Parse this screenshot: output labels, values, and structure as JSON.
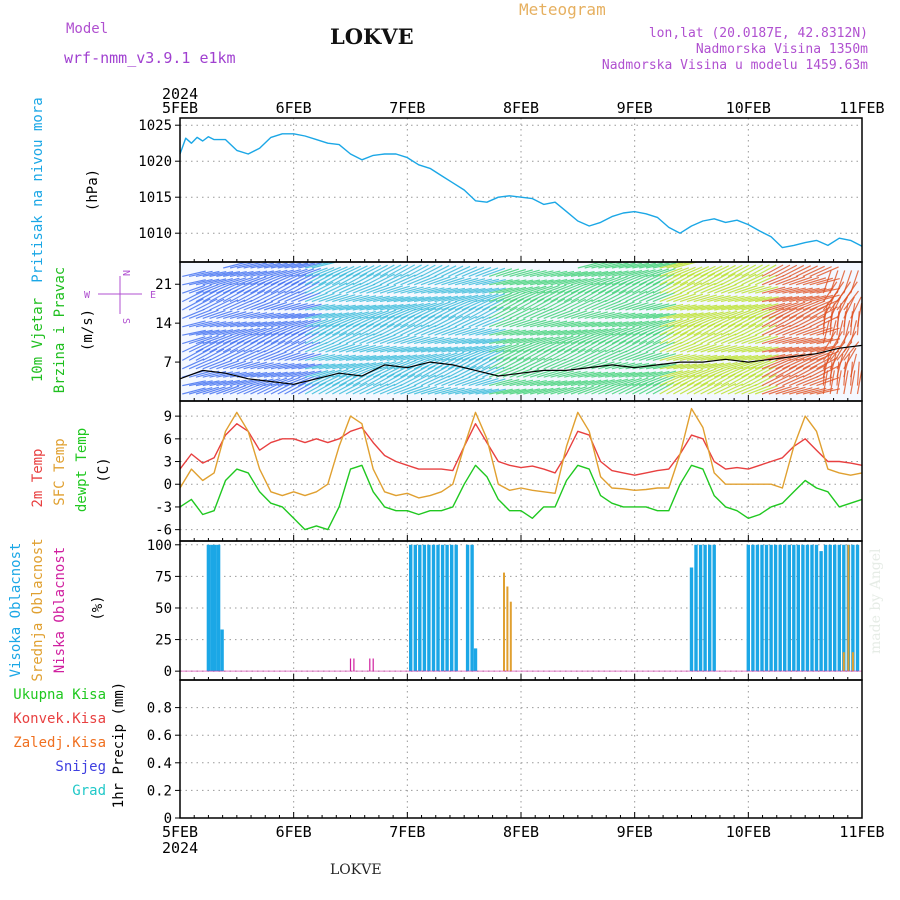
{
  "header": {
    "model_label": "Model",
    "model_value": "wrf-nmm_v3.9.1 e1km",
    "station": "LOKVE",
    "product": "Meteogram",
    "coords": "lon,lat (20.0187E, 42.8312N)",
    "elevation": "Nadmorska Visina 1350m",
    "model_elevation": "Nadmorska Visina u modelu 1459.63m",
    "footer_station": "LOKVE",
    "watermark": "made by Angel"
  },
  "colors": {
    "pressure": "#1ba7e6",
    "wind_label": "#1fbf1f",
    "temp2m": "#e84040",
    "sfc_temp": "#e0a030",
    "dewpt": "#20c820",
    "cloud_high": "#1ba7e6",
    "cloud_mid": "#e0a030",
    "cloud_low": "#d020a0",
    "precip_total": "#20c820",
    "precip_conv": "#e84040",
    "precip_frz": "#f07020",
    "snow": "#4040e0",
    "hail": "#20c8c8"
  },
  "chart_data": {
    "type": "line",
    "time": {
      "year_top": "2024",
      "year_bottom": "2024",
      "tick_labels": [
        "5FEB",
        "6FEB",
        "7FEB",
        "8FEB",
        "9FEB",
        "10FEB",
        "11FEB"
      ],
      "range_days": [
        0,
        6
      ]
    },
    "panels": [
      {
        "id": "pressure",
        "ylabels": [
          "Pritisak na nivou mora",
          "(hPa)"
        ],
        "ylim": [
          1006,
          1026
        ],
        "yticks": [
          1010,
          1015,
          1020,
          1025
        ],
        "series": [
          {
            "t": [
              0.0,
              0.05,
              0.1,
              0.15,
              0.2,
              0.25,
              0.3,
              0.4,
              0.5,
              0.6,
              0.7,
              0.8,
              0.9,
              1.0,
              1.1,
              1.2,
              1.3,
              1.4,
              1.5,
              1.6,
              1.7,
              1.8,
              1.9,
              2.0,
              2.1,
              2.2,
              2.3,
              2.4,
              2.5,
              2.6,
              2.7,
              2.8,
              2.9,
              3.0,
              3.1,
              3.2,
              3.3,
              3.4,
              3.5,
              3.6,
              3.7,
              3.8,
              3.9,
              4.0,
              4.1,
              4.2,
              4.3,
              4.4,
              4.5,
              4.6,
              4.7,
              4.8,
              4.9,
              5.0,
              5.1,
              5.2,
              5.3,
              5.4,
              5.5,
              5.6,
              5.7,
              5.8,
              5.9,
              6.0
            ],
            "values": [
              1021,
              1023.2,
              1022.5,
              1023.3,
              1022.8,
              1023.4,
              1023,
              1023,
              1021.5,
              1021,
              1021.8,
              1023.3,
              1023.8,
              1023.8,
              1023.5,
              1023,
              1022.5,
              1022.3,
              1021,
              1020.2,
              1020.8,
              1021,
              1021,
              1020.5,
              1019.5,
              1019,
              1018,
              1017,
              1016,
              1014.5,
              1014.3,
              1015,
              1015.2,
              1015,
              1014.8,
              1014,
              1014.3,
              1013,
              1011.7,
              1011,
              1011.5,
              1012.3,
              1012.8,
              1013,
              1012.7,
              1012.2,
              1010.8,
              1010,
              1011,
              1011.7,
              1012,
              1011.5,
              1011.8,
              1011.2,
              1010.3,
              1009.5,
              1008,
              1008.3,
              1008.7,
              1009,
              1008.3,
              1009.3,
              1009,
              1008.2
            ]
          }
        ]
      },
      {
        "id": "wind",
        "ylabels": [
          "10m Vjetar",
          "Brzina i Pravac",
          "(m/s)"
        ],
        "direction_legend": [
          "N",
          "S",
          "W",
          "E"
        ],
        "ylim": [
          0,
          25
        ],
        "yticks": [
          7,
          14,
          21
        ],
        "series": [
          {
            "name": "speed",
            "t": [
              0.0,
              0.2,
              0.4,
              0.6,
              0.8,
              1.0,
              1.2,
              1.4,
              1.6,
              1.8,
              2.0,
              2.2,
              2.4,
              2.6,
              2.8,
              3.0,
              3.2,
              3.4,
              3.6,
              3.8,
              4.0,
              4.2,
              4.4,
              4.6,
              4.8,
              5.0,
              5.2,
              5.4,
              5.6,
              5.8,
              6.0
            ],
            "values": [
              4,
              5.5,
              5,
              4,
              3.5,
              3,
              4,
              5,
              4.5,
              6.5,
              6,
              7,
              6.5,
              5.5,
              4.5,
              5,
              5.5,
              5.5,
              6,
              6.5,
              6,
              6.5,
              7,
              7,
              7.5,
              7,
              7.5,
              8,
              8.5,
              9.5,
              10
            ]
          }
        ]
      },
      {
        "id": "temperature",
        "ylabels": [
          "2m Temp",
          "SFC Temp",
          "dewpt Temp",
          "(C)"
        ],
        "ylim": [
          -7.5,
          11
        ],
        "yticks": [
          -6,
          -3,
          0,
          3,
          6,
          9
        ],
        "series": [
          {
            "name": "2m Temp",
            "t": [
              0.0,
              0.1,
              0.2,
              0.3,
              0.4,
              0.5,
              0.6,
              0.7,
              0.8,
              0.9,
              1.0,
              1.1,
              1.2,
              1.3,
              1.4,
              1.5,
              1.6,
              1.7,
              1.8,
              1.9,
              2.0,
              2.1,
              2.2,
              2.3,
              2.4,
              2.5,
              2.6,
              2.7,
              2.8,
              2.9,
              3.0,
              3.1,
              3.2,
              3.3,
              3.4,
              3.5,
              3.6,
              3.7,
              3.8,
              3.9,
              4.0,
              4.1,
              4.2,
              4.3,
              4.4,
              4.5,
              4.6,
              4.7,
              4.8,
              4.9,
              5.0,
              5.1,
              5.2,
              5.3,
              5.4,
              5.5,
              5.6,
              5.7,
              5.8,
              5.9,
              6.0
            ],
            "values": [
              2,
              4,
              2.8,
              3.5,
              6.5,
              8,
              7,
              4.5,
              5.5,
              6,
              6,
              5.5,
              6,
              5.5,
              6,
              7,
              7.5,
              5.5,
              3.8,
              3,
              2.5,
              2,
              2,
              2,
              1.8,
              5,
              8,
              5.5,
              3,
              2.5,
              2.2,
              2.4,
              2,
              1.5,
              4,
              7,
              6.5,
              3,
              1.8,
              1.5,
              1.2,
              1.5,
              1.8,
              2,
              4,
              6.5,
              6,
              3,
              2,
              2.2,
              2,
              2.5,
              3,
              3.5,
              5,
              6,
              4.5,
              3,
              3,
              2.8,
              2.5
            ]
          },
          {
            "name": "SFC Temp",
            "t": [
              0.0,
              0.1,
              0.2,
              0.3,
              0.4,
              0.5,
              0.6,
              0.7,
              0.8,
              0.9,
              1.0,
              1.1,
              1.2,
              1.3,
              1.4,
              1.5,
              1.6,
              1.7,
              1.8,
              1.9,
              2.0,
              2.1,
              2.2,
              2.3,
              2.4,
              2.5,
              2.6,
              2.7,
              2.8,
              2.9,
              3.0,
              3.1,
              3.2,
              3.3,
              3.4,
              3.5,
              3.6,
              3.7,
              3.8,
              3.9,
              4.0,
              4.1,
              4.2,
              4.3,
              4.4,
              4.5,
              4.6,
              4.7,
              4.8,
              4.9,
              5.0,
              5.1,
              5.2,
              5.3,
              5.4,
              5.5,
              5.6,
              5.7,
              5.8,
              5.9,
              6.0
            ],
            "values": [
              -0.5,
              2,
              0.5,
              1.5,
              7,
              9.5,
              7,
              2,
              -1,
              -1.5,
              -1,
              -1.5,
              -1,
              0,
              5,
              9,
              8,
              2,
              -1,
              -1.5,
              -1.2,
              -1.8,
              -1.5,
              -1,
              0,
              5,
              9.5,
              6,
              0,
              -0.8,
              -0.5,
              -0.8,
              -1,
              -1.2,
              5,
              9.5,
              7,
              1,
              -0.5,
              -0.6,
              -0.8,
              -0.7,
              -0.5,
              -0.5,
              4,
              10,
              7.5,
              1.5,
              0,
              0,
              0,
              0,
              0,
              -0.5,
              5,
              9,
              7,
              2,
              1.5,
              1.2,
              1.5
            ]
          },
          {
            "name": "dewpt Temp",
            "t": [
              0.0,
              0.1,
              0.2,
              0.3,
              0.4,
              0.5,
              0.6,
              0.7,
              0.8,
              0.9,
              1.0,
              1.1,
              1.2,
              1.3,
              1.4,
              1.5,
              1.6,
              1.7,
              1.8,
              1.9,
              2.0,
              2.1,
              2.2,
              2.3,
              2.4,
              2.5,
              2.6,
              2.7,
              2.8,
              2.9,
              3.0,
              3.1,
              3.2,
              3.3,
              3.4,
              3.5,
              3.6,
              3.7,
              3.8,
              3.9,
              4.0,
              4.1,
              4.2,
              4.3,
              4.4,
              4.5,
              4.6,
              4.7,
              4.8,
              4.9,
              5.0,
              5.1,
              5.2,
              5.3,
              5.4,
              5.5,
              5.6,
              5.7,
              5.8,
              5.9,
              6.0
            ],
            "values": [
              -3,
              -2,
              -4,
              -3.5,
              0.5,
              2,
              1.5,
              -1,
              -2.5,
              -3,
              -4.5,
              -6,
              -5.5,
              -6,
              -3,
              2,
              2.5,
              -1,
              -3,
              -3.5,
              -3.5,
              -4,
              -3.5,
              -3.5,
              -3,
              0,
              2.5,
              1,
              -2,
              -3.5,
              -3.5,
              -4.5,
              -3,
              -3,
              0.5,
              2.5,
              2,
              -1.5,
              -2.5,
              -3,
              -3,
              -3,
              -3.5,
              -3.5,
              0,
              2.5,
              2,
              -1.5,
              -3,
              -3.5,
              -4.5,
              -4,
              -3,
              -2.5,
              -1,
              0.5,
              -0.5,
              -1,
              -3,
              -2.5,
              -2
            ]
          }
        ]
      },
      {
        "id": "cloud",
        "ylabels": [
          "Visoka Oblacnost",
          "Srednja Oblacnost",
          "Niska Oblacnost",
          "(%)"
        ],
        "ylim": [
          -7,
          103
        ],
        "yticks": [
          0,
          25,
          50,
          75,
          100
        ],
        "series": [
          {
            "name": "Visoka Oblacnost",
            "t": [
              0.25,
              0.28,
              0.31,
              0.34,
              0.37,
              2.03,
              2.07,
              2.11,
              2.15,
              2.19,
              2.23,
              2.27,
              2.31,
              2.35,
              2.39,
              2.43,
              2.53,
              2.57,
              2.6,
              4.5,
              4.54,
              4.58,
              4.62,
              4.66,
              4.7,
              5.0,
              5.04,
              5.08,
              5.12,
              5.16,
              5.2,
              5.24,
              5.28,
              5.32,
              5.36,
              5.4,
              5.44,
              5.48,
              5.52,
              5.56,
              5.6,
              5.64,
              5.68,
              5.72,
              5.76,
              5.8,
              5.84,
              5.88,
              5.92,
              5.96
            ],
            "values": [
              100,
              100,
              100,
              100,
              33,
              100,
              100,
              100,
              100,
              100,
              100,
              100,
              100,
              100,
              100,
              100,
              100,
              100,
              18,
              82,
              100,
              100,
              100,
              100,
              100,
              100,
              100,
              100,
              100,
              100,
              100,
              100,
              100,
              100,
              100,
              100,
              100,
              100,
              100,
              100,
              100,
              95,
              100,
              100,
              100,
              100,
              100,
              100,
              100,
              100
            ]
          },
          {
            "name": "Srednja Oblacnost",
            "t": [
              2.85,
              2.88,
              2.91,
              5.84,
              5.88,
              5.92
            ],
            "values": [
              78,
              67,
              55,
              15,
              100,
              15
            ]
          },
          {
            "name": "Niska Oblacnost",
            "t": [
              1.5,
              1.53,
              1.67,
              1.7
            ],
            "values": [
              10,
              10,
              10,
              10
            ]
          }
        ]
      },
      {
        "id": "precip",
        "ylabels": [
          "1hr Precip (mm)"
        ],
        "legend": [
          "Ukupna Kisa",
          "Konvek.Kisa",
          "Zaledj.Kisa",
          "Snijeg",
          "Grad"
        ],
        "ylim": [
          0,
          1.0
        ],
        "yticks": [
          0,
          0.2,
          0.4,
          0.6,
          0.8
        ],
        "series": []
      }
    ]
  }
}
